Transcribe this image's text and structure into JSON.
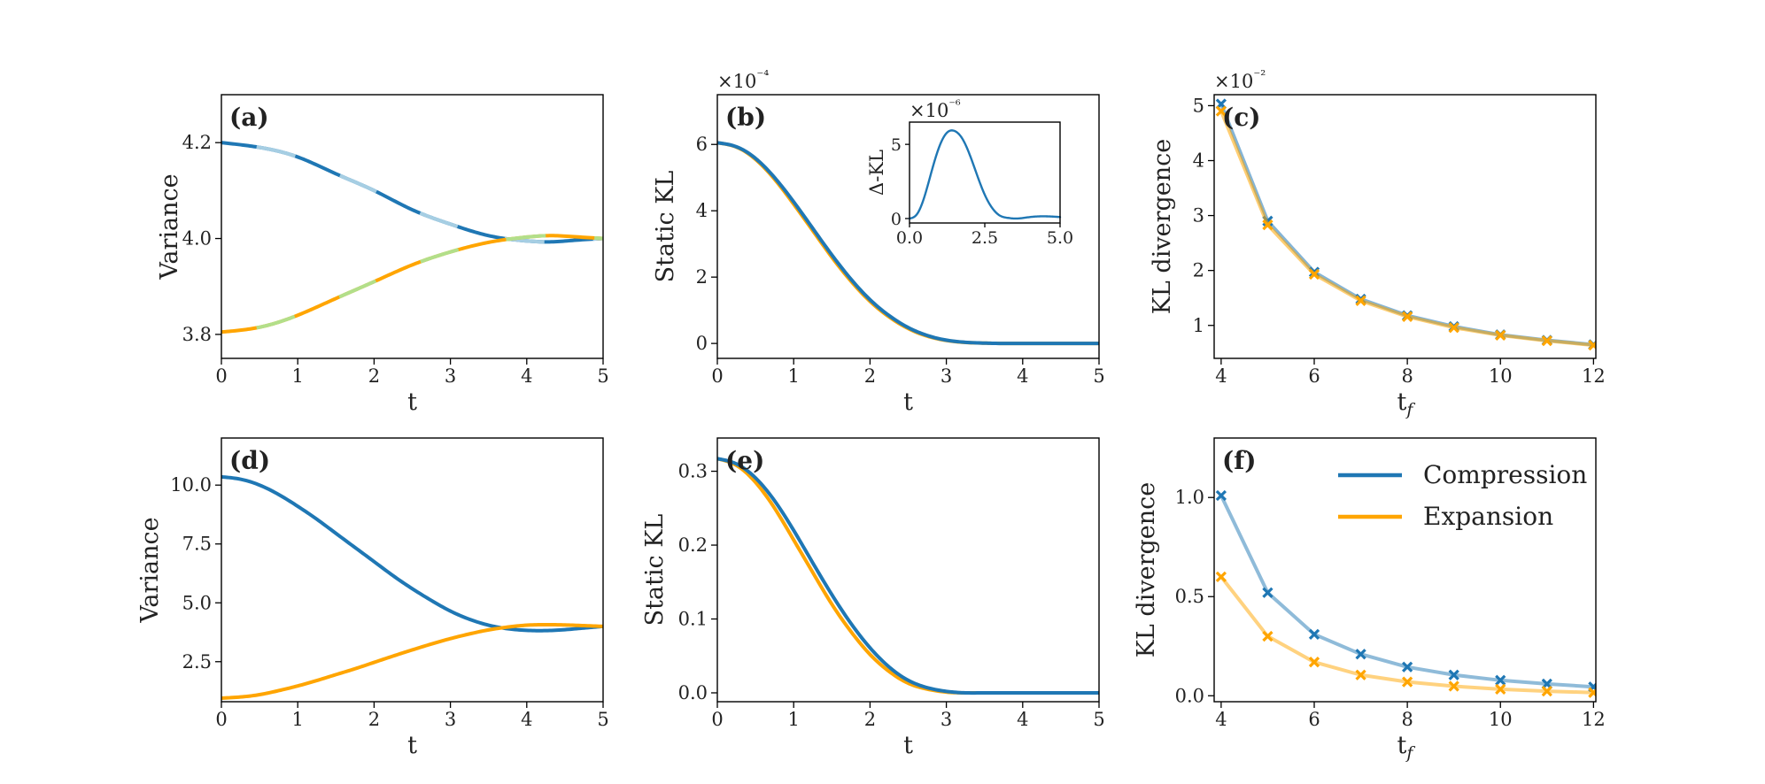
{
  "figure": {
    "colors": {
      "compression": "#1f77b4",
      "expansion": "#ffa500",
      "compression_light": "#a6cee3",
      "expansion_light": "#b2df8a"
    },
    "legend": {
      "compression": "Compression",
      "expansion": "Expansion"
    }
  },
  "chart_data": [
    {
      "id": "a",
      "panel_label": "(a)",
      "type": "line",
      "xlabel": "t",
      "ylabel": "Variance",
      "xlim": [
        0,
        5
      ],
      "ylim": [
        3.75,
        4.3
      ],
      "xticks": [
        0,
        1,
        2,
        3,
        4,
        5
      ],
      "xticklabels": [
        "0",
        "1",
        "2",
        "3",
        "4",
        "5"
      ],
      "yticks": [
        3.8,
        4.0,
        4.2
      ],
      "yticklabels": [
        "3.8",
        "4.0",
        "4.2"
      ],
      "series": [
        {
          "name": "Compression",
          "color": "#1f77b4",
          "dash_color": "#a6cee3",
          "x": [
            0,
            0.5,
            1,
            1.5,
            2,
            2.5,
            3,
            3.5,
            4,
            4.3,
            4.6,
            5
          ],
          "y": [
            4.2,
            4.19,
            4.17,
            4.135,
            4.1,
            4.06,
            4.03,
            4.006,
            3.995,
            3.993,
            3.996,
            4.0
          ]
        },
        {
          "name": "Expansion",
          "color": "#ffa500",
          "dash_color": "#b2df8a",
          "x": [
            0,
            0.5,
            1,
            1.5,
            2,
            2.5,
            3,
            3.5,
            4,
            4.3,
            4.6,
            5
          ],
          "y": [
            3.805,
            3.815,
            3.84,
            3.875,
            3.91,
            3.945,
            3.972,
            3.992,
            4.003,
            4.006,
            4.004,
            4.0
          ]
        }
      ]
    },
    {
      "id": "b",
      "panel_label": "(b)",
      "type": "line",
      "xlabel": "t",
      "ylabel": "Static KL",
      "scale_label": "×10⁻⁴",
      "xlim": [
        0,
        5
      ],
      "ylim": [
        -0.45,
        7.5
      ],
      "xticks": [
        0,
        1,
        2,
        3,
        4,
        5
      ],
      "xticklabels": [
        "0",
        "1",
        "2",
        "3",
        "4",
        "5"
      ],
      "yticks": [
        0,
        2,
        4,
        6
      ],
      "yticklabels": [
        "0",
        "2",
        "4",
        "6"
      ],
      "series": [
        {
          "name": "Expansion",
          "color": "#ffa500",
          "x": [
            0,
            0.25,
            0.5,
            0.75,
            1,
            1.25,
            1.5,
            1.75,
            2,
            2.25,
            2.5,
            2.75,
            3,
            3.25,
            3.5,
            3.75,
            4,
            4.5,
            5
          ],
          "y": [
            6.05,
            5.92,
            5.55,
            4.95,
            4.2,
            3.4,
            2.6,
            1.88,
            1.27,
            0.8,
            0.45,
            0.22,
            0.09,
            0.03,
            0.01,
            0.0,
            0.0,
            0.0,
            0.0
          ]
        },
        {
          "name": "Compression",
          "color": "#1f77b4",
          "x": [
            0,
            0.25,
            0.5,
            0.75,
            1,
            1.25,
            1.5,
            1.75,
            2,
            2.25,
            2.5,
            2.75,
            3,
            3.25,
            3.5,
            3.75,
            4,
            4.5,
            5
          ],
          "y": [
            6.05,
            5.93,
            5.58,
            5.0,
            4.27,
            3.47,
            2.67,
            1.94,
            1.32,
            0.84,
            0.48,
            0.24,
            0.1,
            0.035,
            0.01,
            0.0,
            0.0,
            0.0,
            0.0
          ]
        }
      ],
      "inset": {
        "ylabel": "Δ-KL",
        "scale_label": "×10⁻⁶",
        "xlim": [
          0,
          5
        ],
        "ylim": [
          -0.3,
          6.5
        ],
        "xticks": [
          0,
          2.5,
          5
        ],
        "xticklabels": [
          "0.0",
          "2.5",
          "5.0"
        ],
        "yticks": [
          0,
          5
        ],
        "yticklabels": [
          "0",
          "5"
        ],
        "series": [
          {
            "name": "Δ-KL",
            "color": "#1f77b4",
            "x": [
              0,
              0.25,
              0.5,
              0.75,
              1,
              1.25,
              1.5,
              1.75,
              2,
              2.25,
              2.5,
              2.75,
              3,
              3.25,
              3.5,
              4,
              4.5,
              5
            ],
            "y": [
              0.0,
              0.3,
              1.5,
              3.3,
              4.9,
              5.8,
              5.9,
              5.4,
              4.3,
              2.9,
              1.6,
              0.7,
              0.2,
              0.05,
              0.0,
              0.1,
              0.15,
              0.1
            ]
          }
        ]
      }
    },
    {
      "id": "c",
      "panel_label": "(c)",
      "type": "line",
      "xlabel": "t_f",
      "ylabel": "KL divergence",
      "scale_label": "×10⁻²",
      "xlim": [
        3.85,
        12.05
      ],
      "ylim": [
        0.4,
        5.2
      ],
      "xticks": [
        4,
        6,
        8,
        10,
        12
      ],
      "xticklabels": [
        "4",
        "6",
        "8",
        "10",
        "12"
      ],
      "yticks": [
        1,
        2,
        3,
        4,
        5
      ],
      "yticklabels": [
        "1",
        "2",
        "3",
        "4",
        "5"
      ],
      "markers": true,
      "series": [
        {
          "name": "Compression",
          "color": "#1f77b4",
          "x": [
            4,
            5,
            6,
            7,
            8,
            9,
            10,
            11,
            12
          ],
          "y": [
            5.03,
            2.9,
            1.97,
            1.48,
            1.18,
            0.98,
            0.83,
            0.73,
            0.65
          ]
        },
        {
          "name": "Expansion",
          "color": "#ffa500",
          "x": [
            4,
            5,
            6,
            7,
            8,
            9,
            10,
            11,
            12
          ],
          "y": [
            4.9,
            2.83,
            1.93,
            1.45,
            1.16,
            0.96,
            0.82,
            0.72,
            0.64
          ]
        }
      ]
    },
    {
      "id": "d",
      "panel_label": "(d)",
      "type": "line",
      "xlabel": "t",
      "ylabel": "Variance",
      "xlim": [
        0,
        5
      ],
      "ylim": [
        0.8,
        12.0
      ],
      "xticks": [
        0,
        1,
        2,
        3,
        4,
        5
      ],
      "xticklabels": [
        "0",
        "1",
        "2",
        "3",
        "4",
        "5"
      ],
      "yticks": [
        2.5,
        5.0,
        7.5,
        10.0
      ],
      "yticklabels": [
        "2.5",
        "5.0",
        "7.5",
        "10.0"
      ],
      "series": [
        {
          "name": "Compression",
          "color": "#1f77b4",
          "x": [
            0,
            0.25,
            0.5,
            0.75,
            1,
            1.25,
            1.5,
            1.75,
            2,
            2.25,
            2.5,
            2.75,
            3,
            3.25,
            3.5,
            3.75,
            4,
            4.25,
            4.5,
            4.75,
            5
          ],
          "y": [
            10.35,
            10.25,
            10.0,
            9.6,
            9.1,
            8.55,
            7.95,
            7.35,
            6.75,
            6.15,
            5.6,
            5.1,
            4.65,
            4.3,
            4.05,
            3.9,
            3.83,
            3.82,
            3.86,
            3.93,
            4.0
          ]
        },
        {
          "name": "Expansion",
          "color": "#ffa500",
          "x": [
            0,
            0.25,
            0.5,
            0.75,
            1,
            1.25,
            1.5,
            1.75,
            2,
            2.25,
            2.5,
            2.75,
            3,
            3.25,
            3.5,
            3.75,
            4,
            4.25,
            4.5,
            4.75,
            5
          ],
          "y": [
            0.95,
            1.0,
            1.1,
            1.27,
            1.47,
            1.7,
            1.95,
            2.2,
            2.47,
            2.74,
            3.0,
            3.25,
            3.48,
            3.68,
            3.85,
            3.97,
            4.05,
            4.07,
            4.06,
            4.03,
            4.0
          ]
        }
      ]
    },
    {
      "id": "e",
      "panel_label": "(e)",
      "type": "line",
      "xlabel": "t",
      "ylabel": "Static KL",
      "xlim": [
        0,
        5
      ],
      "ylim": [
        -0.012,
        0.345
      ],
      "xticks": [
        0,
        1,
        2,
        3,
        4,
        5
      ],
      "xticklabels": [
        "0",
        "1",
        "2",
        "3",
        "4",
        "5"
      ],
      "yticks": [
        0.0,
        0.1,
        0.2,
        0.3
      ],
      "yticklabels": [
        "0.0",
        "0.1",
        "0.2",
        "0.3"
      ],
      "series": [
        {
          "name": "Expansion",
          "color": "#ffa500",
          "x": [
            0,
            0.25,
            0.5,
            0.75,
            1,
            1.25,
            1.5,
            1.75,
            2,
            2.25,
            2.5,
            2.75,
            3,
            3.25,
            3.5,
            3.75,
            4,
            4.5,
            5
          ],
          "y": [
            0.317,
            0.308,
            0.285,
            0.25,
            0.207,
            0.163,
            0.12,
            0.083,
            0.052,
            0.029,
            0.013,
            0.005,
            0.001,
            0.0,
            0.0,
            0.0,
            0.0,
            0.0,
            0.0
          ]
        },
        {
          "name": "Compression",
          "color": "#1f77b4",
          "x": [
            0,
            0.25,
            0.5,
            0.75,
            1,
            1.25,
            1.5,
            1.75,
            2,
            2.25,
            2.5,
            2.75,
            3,
            3.25,
            3.5,
            3.75,
            4,
            4.5,
            5
          ],
          "y": [
            0.317,
            0.31,
            0.291,
            0.26,
            0.22,
            0.176,
            0.133,
            0.094,
            0.061,
            0.035,
            0.017,
            0.007,
            0.002,
            0.0,
            0.0,
            0.0,
            0.0,
            0.0,
            0.0
          ]
        }
      ]
    },
    {
      "id": "f",
      "panel_label": "(f)",
      "type": "line",
      "xlabel": "t_f",
      "ylabel": "KL divergence",
      "xlim": [
        3.85,
        12.05
      ],
      "ylim": [
        -0.03,
        1.3
      ],
      "xticks": [
        4,
        6,
        8,
        10,
        12
      ],
      "xticklabels": [
        "4",
        "6",
        "8",
        "10",
        "12"
      ],
      "yticks": [
        0.0,
        0.5,
        1.0
      ],
      "yticklabels": [
        "0.0",
        "0.5",
        "1.0"
      ],
      "markers": true,
      "legend": "top-right",
      "series": [
        {
          "name": "Compression",
          "color": "#1f77b4",
          "x": [
            4,
            5,
            6,
            7,
            8,
            9,
            10,
            11,
            12
          ],
          "y": [
            1.01,
            0.52,
            0.31,
            0.21,
            0.145,
            0.105,
            0.078,
            0.06,
            0.045
          ]
        },
        {
          "name": "Expansion",
          "color": "#ffa500",
          "x": [
            4,
            5,
            6,
            7,
            8,
            9,
            10,
            11,
            12
          ],
          "y": [
            0.6,
            0.3,
            0.17,
            0.105,
            0.07,
            0.048,
            0.033,
            0.023,
            0.016
          ]
        }
      ]
    }
  ]
}
